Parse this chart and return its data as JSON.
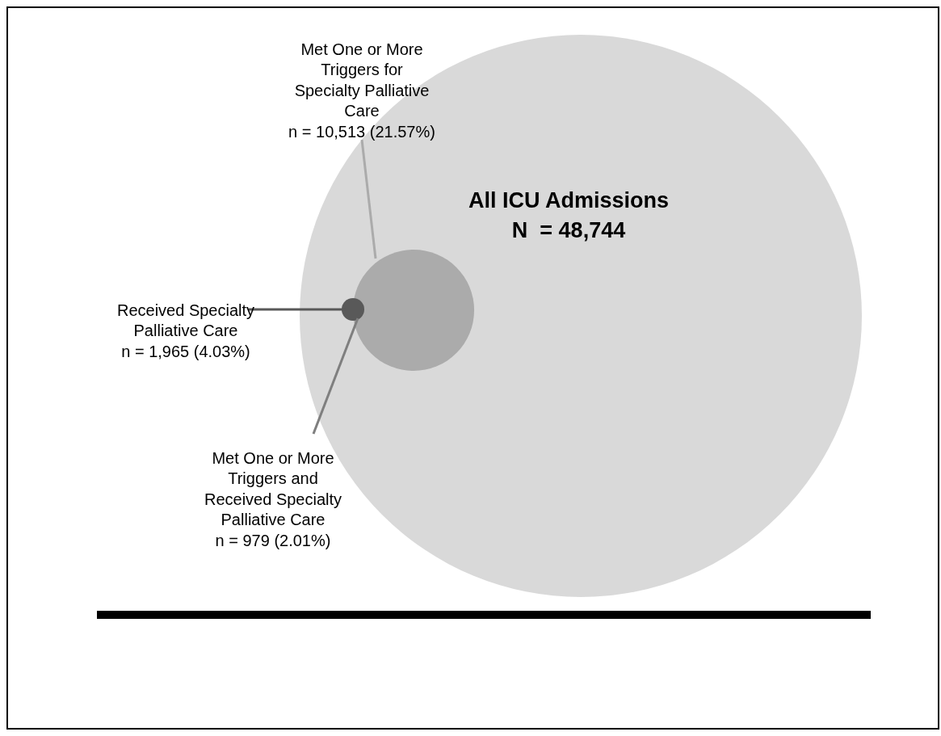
{
  "chart_data": {
    "type": "other",
    "categories": [
      "All ICU Admissions",
      "Met One or More Triggers for Specialty Palliative Care",
      "Received Specialty Palliative Care",
      "Met One or More Triggers and Received Specialty Palliative Care"
    ],
    "values": [
      48744,
      10513,
      1965,
      979
    ],
    "value_labels": [
      "N  = 48,744",
      "n = 10,513 (21.57%)",
      "n = 1,965 (4.03%)",
      "n = 979 (2.01%)"
    ],
    "colors": [
      "#d9d9d9",
      "#ababab",
      "#595959",
      null
    ]
  }
}
